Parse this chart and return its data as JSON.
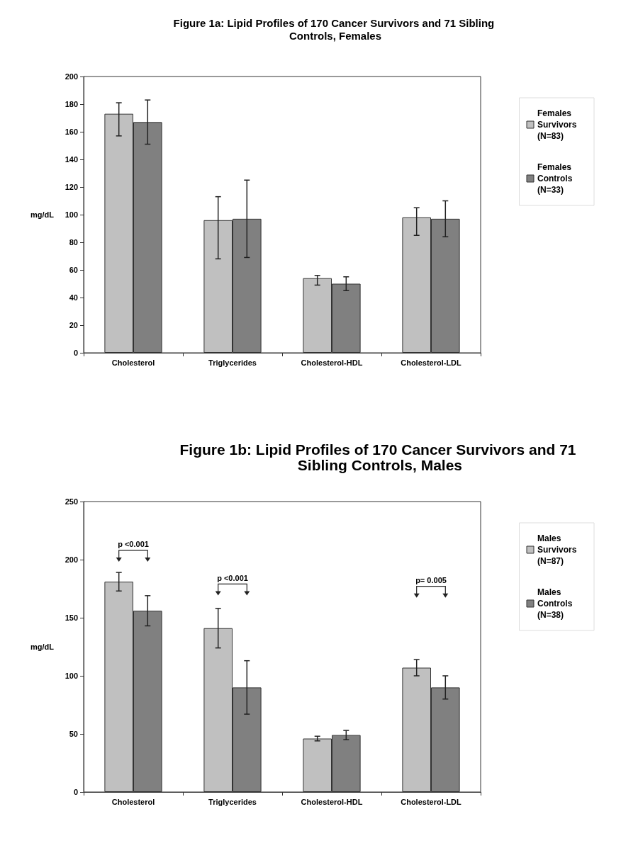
{
  "chart_data": [
    {
      "type": "bar",
      "title": "Figure 1a: Lipid Profiles of 170 Cancer Survivors and 71 Sibling Controls, Females",
      "ylabel": "mg/dL",
      "categories": [
        "Cholesterol",
        "Triglycerides",
        "Cholesterol-HDL",
        "Cholesterol-LDL"
      ],
      "ylim": [
        0,
        200
      ],
      "yticks": [
        0,
        20,
        40,
        60,
        80,
        100,
        120,
        140,
        160,
        180,
        200
      ],
      "grid": false,
      "legend": "right",
      "series": [
        {
          "name": "Females Survivors (N=83)",
          "color": "#c0c0c0",
          "values": [
            173,
            96,
            54,
            98
          ],
          "errors": [
            [
              157,
              181
            ],
            [
              68,
              113
            ],
            [
              49,
              56
            ],
            [
              85,
              105
            ]
          ]
        },
        {
          "name": "Females Controls (N=33)",
          "color": "#808080",
          "values": [
            167,
            97,
            50,
            97
          ],
          "errors": [
            [
              151,
              183
            ],
            [
              69,
              125
            ],
            [
              45,
              55
            ],
            [
              84,
              110
            ]
          ]
        }
      ]
    },
    {
      "type": "bar",
      "title": "Figure 1b: Lipid Profiles of 170 Cancer Survivors and 71 Sibling Controls, Males",
      "ylabel": "mg/dL",
      "categories": [
        "Cholesterol",
        "Triglycerides",
        "Cholesterol-HDL",
        "Cholesterol-LDL"
      ],
      "ylim": [
        0,
        250
      ],
      "yticks": [
        0,
        50,
        100,
        150,
        200,
        250
      ],
      "grid": false,
      "legend": "right",
      "series": [
        {
          "name": "Males Survivors (N=87)",
          "color": "#c0c0c0",
          "values": [
            181,
            141,
            46,
            107
          ],
          "errors": [
            [
              173,
              189
            ],
            [
              124,
              158
            ],
            [
              44,
              48
            ],
            [
              100,
              114
            ]
          ]
        },
        {
          "name": "Males Controls (N=38)",
          "color": "#808080",
          "values": [
            156,
            90,
            49,
            90
          ],
          "errors": [
            [
              143,
              169
            ],
            [
              67,
              113
            ],
            [
              45,
              53
            ],
            [
              80,
              100
            ]
          ]
        }
      ],
      "annotations": [
        "p <0.001",
        "p <0.001",
        "p= 0.005"
      ]
    }
  ]
}
